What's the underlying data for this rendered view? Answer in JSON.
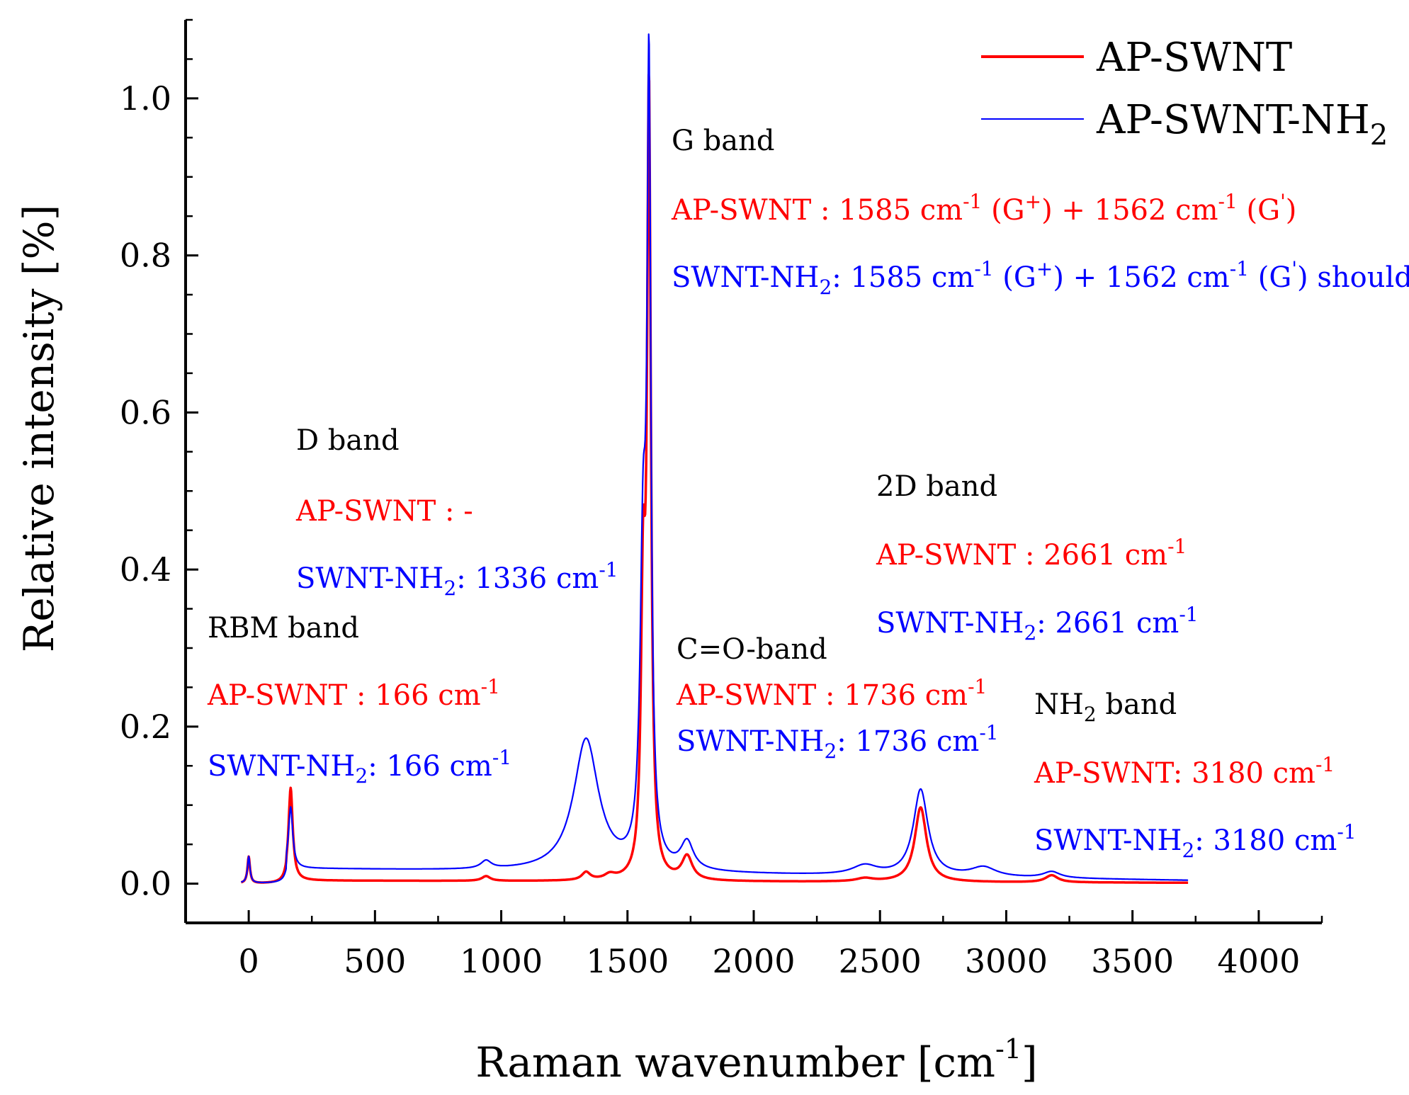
{
  "chart_data": {
    "type": "line",
    "xlabel": "Raman wavenumber [cm",
    "xlabel_sup": "-1",
    "xlabel_suffix": "]",
    "ylabel": "Relative intensity [%]",
    "xlim": [
      -250,
      4250
    ],
    "ylim": [
      -0.05,
      1.1
    ],
    "x_ticks": [
      0,
      500,
      1000,
      1500,
      2000,
      2500,
      3000,
      3500,
      4000
    ],
    "y_ticks": [
      0.0,
      0.2,
      0.4,
      0.6,
      0.8,
      1.0
    ],
    "x_tick_labels": [
      "0",
      "500",
      "1000",
      "1500",
      "2000",
      "2500",
      "3000",
      "3500",
      "4000"
    ],
    "y_tick_labels": [
      "0.0",
      "0.2",
      "0.4",
      "0.6",
      "0.8",
      "1.0"
    ],
    "legend": [
      {
        "name": "AP-SWNT",
        "color": "#ff0000",
        "sub": ""
      },
      {
        "name": "AP-SWNT-NH",
        "color": "#0000ff",
        "sub": "2"
      }
    ],
    "series": [
      {
        "name": "AP-SWNT",
        "color": "#ff0000",
        "baseline": 0.004,
        "baseline_end": 0.001,
        "x_range": [
          -30,
          3720
        ],
        "peaks": [
          {
            "x": 0,
            "h": 0.034,
            "w": 6
          },
          {
            "x": 166,
            "h": 0.118,
            "w": 10
          },
          {
            "x": 940,
            "h": 0.006,
            "w": 20
          },
          {
            "x": 1336,
            "h": 0.01,
            "w": 20
          },
          {
            "x": 1430,
            "h": 0.006,
            "w": 25
          },
          {
            "x": 1562,
            "h": 0.34,
            "w": 10
          },
          {
            "x": 1585,
            "h": 0.98,
            "w": 9
          },
          {
            "x": 1736,
            "h": 0.03,
            "w": 25
          },
          {
            "x": 2440,
            "h": 0.004,
            "w": 40
          },
          {
            "x": 2661,
            "h": 0.095,
            "w": 28
          },
          {
            "x": 3180,
            "h": 0.009,
            "w": 30
          }
        ]
      },
      {
        "name": "AP-SWNT-NH2",
        "color": "#0000ff",
        "baseline": 0.02,
        "baseline_end": 0.004,
        "x_range": [
          -30,
          3720
        ],
        "peaks": [
          {
            "x": 0,
            "h": 0.034,
            "w": 6
          },
          {
            "x": 166,
            "h": 0.078,
            "w": 10
          },
          {
            "x": 940,
            "h": 0.01,
            "w": 25
          },
          {
            "x": 1336,
            "h": 0.168,
            "w": 60
          },
          {
            "x": 1562,
            "h": 0.38,
            "w": 14
          },
          {
            "x": 1585,
            "h": 0.96,
            "w": 9
          },
          {
            "x": 1736,
            "h": 0.035,
            "w": 30
          },
          {
            "x": 2440,
            "h": 0.012,
            "w": 60
          },
          {
            "x": 2661,
            "h": 0.11,
            "w": 35
          },
          {
            "x": 2910,
            "h": 0.012,
            "w": 60
          },
          {
            "x": 3180,
            "h": 0.008,
            "w": 40
          }
        ]
      }
    ],
    "annotations": {
      "rbm": {
        "title": "RBM band",
        "ap": "AP-SWNT : 166 cm",
        "ap_sup": "-1",
        "nh_a": "SWNT-NH",
        "nh_b": ": 166 cm",
        "nh_sup": "-1"
      },
      "d": {
        "title": "D band",
        "ap": "AP-SWNT : -",
        "nh_a": "SWNT-NH",
        "nh_b": ": 1336 cm",
        "nh_sup": "-1"
      },
      "g": {
        "title": "G band",
        "ap1": "AP-SWNT : 1585 cm",
        "ap_sup1": "-1",
        "ap2": " (G",
        "ap_sup2": "+",
        "ap3": ") + 1562 cm",
        "ap_sup3": "-1",
        "ap4": " (G",
        "ap_sup4": "'",
        "ap5": ")",
        "nh1": "SWNT-NH",
        "nh_sub": "2",
        "nh2": ": 1585 cm",
        "nh_sup1": "-1",
        "nh3": " (G",
        "nh_sup2": "+",
        "nh4": ") + 1562 cm",
        "nh_sup3": "-1",
        "nh5": " (G",
        "nh_sup4": "'",
        "nh6": ")  shoulder"
      },
      "co": {
        "title": "C=O-band",
        "ap": "AP-SWNT : 1736 cm",
        "ap_sup": "-1",
        "nh_a": "SWNT-NH",
        "nh_b": ": 1736 cm",
        "nh_sup": "-1"
      },
      "twod": {
        "title": "2D band",
        "ap": "AP-SWNT : 2661 cm",
        "ap_sup": "-1",
        "nh_a": "SWNT-NH",
        "nh_b": ": 2661 cm",
        "nh_sup": "-1"
      },
      "nh2": {
        "title_a": "NH",
        "title_b": " band",
        "ap": "AP-SWNT: 3180 cm",
        "ap_sup": "-1",
        "nh_a": "SWNT-NH",
        "nh_b": ": 3180 cm",
        "nh_sup": "-1"
      },
      "sub2": "2"
    }
  }
}
